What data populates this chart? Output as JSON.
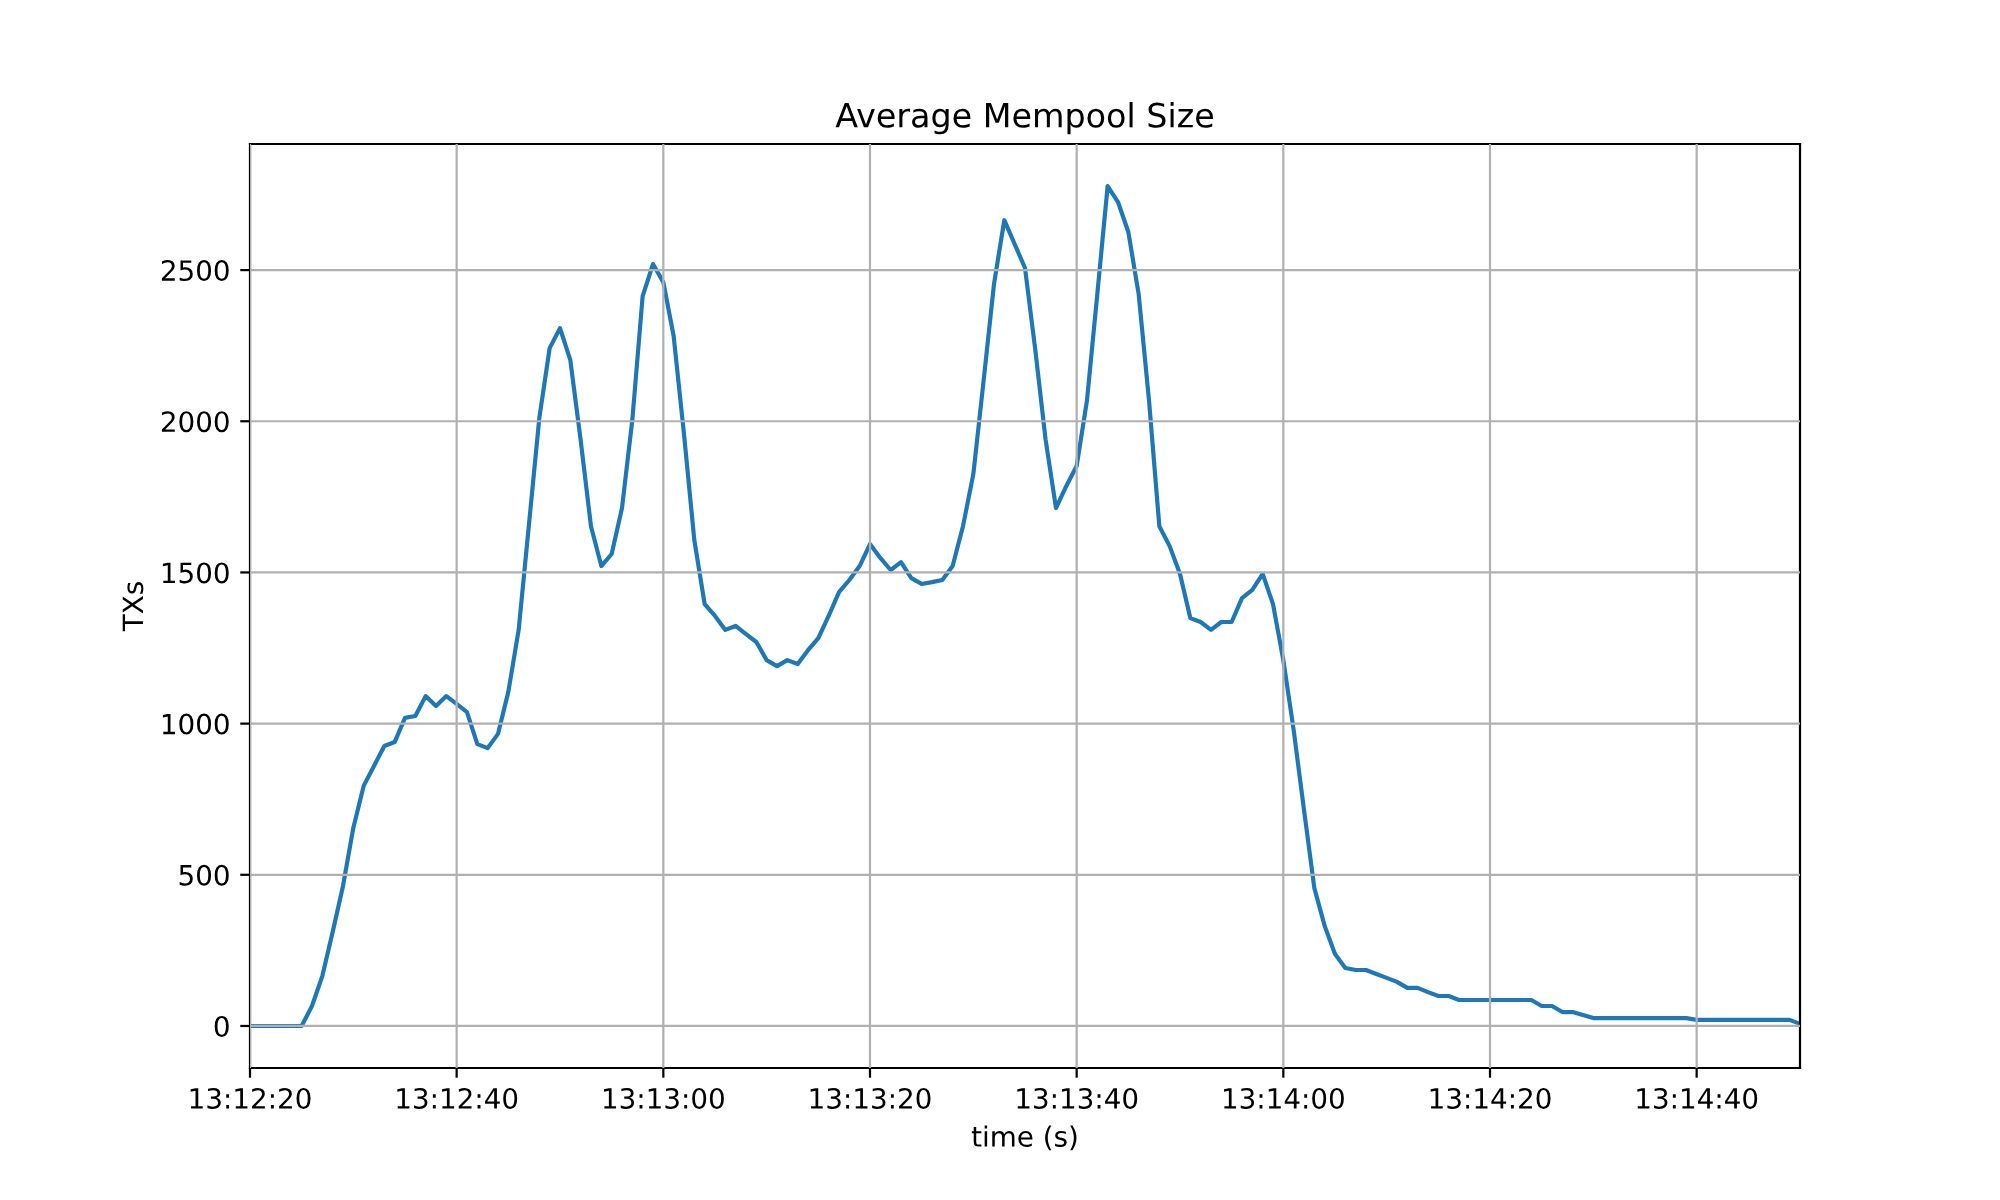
{
  "chart_data": {
    "type": "line",
    "title": "Average Mempool Size",
    "xlabel": "time (s)",
    "ylabel": "TXs",
    "x": [
      13.205556,
      13.206944,
      13.207222,
      13.2075,
      13.207778,
      13.208056,
      13.208333,
      13.208611,
      13.208889,
      13.209167,
      13.209444,
      13.209722,
      13.21,
      13.210278,
      13.210556,
      13.210833,
      13.211111,
      13.211389,
      13.211667,
      13.211944,
      13.212222,
      13.2125,
      13.212778,
      13.213056,
      13.213333,
      13.213611,
      13.213889,
      13.214167,
      13.214444,
      13.214722,
      13.215,
      13.215278,
      13.215556,
      13.215833,
      13.216111,
      13.216389,
      13.216667,
      13.216944,
      13.217222,
      13.2175,
      13.217778,
      13.218056,
      13.218333,
      13.218611,
      13.218889,
      13.219167,
      13.219444,
      13.219722,
      13.22,
      13.220278,
      13.220556,
      13.220833,
      13.221111,
      13.221389,
      13.221667,
      13.221944,
      13.222222,
      13.2225,
      13.222778,
      13.223056,
      13.223333,
      13.223611,
      13.223889,
      13.224167,
      13.224444,
      13.224722,
      13.225,
      13.225278,
      13.225556,
      13.225833,
      13.226111,
      13.226389,
      13.226667,
      13.226944,
      13.227222,
      13.2275,
      13.227778,
      13.228056,
      13.228333,
      13.228611,
      13.228889,
      13.229167,
      13.229444,
      13.229722,
      13.23,
      13.230278,
      13.230556,
      13.230833,
      13.231111,
      13.231389,
      13.231667,
      13.231944,
      13.232222,
      13.2325,
      13.232778,
      13.233056,
      13.233333,
      13.233611,
      13.233889,
      13.234167,
      13.234444,
      13.234722,
      13.235,
      13.235278,
      13.235556,
      13.235833,
      13.236111,
      13.236389,
      13.236667,
      13.236944,
      13.237222,
      13.2375,
      13.237778,
      13.238056,
      13.24,
      13.240278,
      13.240556,
      13.240833,
      13.241111,
      13.241667,
      13.244167,
      13.244444,
      13.246944,
      13.247222
    ],
    "series": [
      {
        "color": "#1f77b4",
        "values": [
          0,
          0,
          66,
          165,
          311,
          463,
          655,
          794,
          860,
          926,
          939,
          1019,
          1025,
          1091,
          1058,
          1091,
          1065,
          1038,
          932,
          919,
          966,
          1105,
          1310,
          1660,
          2011,
          2242,
          2308,
          2202,
          1938,
          1653,
          1521,
          1561,
          1713,
          2004,
          2414,
          2520,
          2460,
          2282,
          1958,
          1607,
          1395,
          1356,
          1310,
          1323,
          1296,
          1270,
          1210,
          1190,
          1210,
          1197,
          1243,
          1283,
          1356,
          1435,
          1475,
          1521,
          1594,
          1548,
          1508,
          1534,
          1481,
          1462,
          1468,
          1475,
          1521,
          1653,
          1825,
          2136,
          2454,
          2665,
          2586,
          2507,
          2235,
          1938,
          1713,
          1786,
          1852,
          2070,
          2421,
          2778,
          2725,
          2626,
          2421,
          2070,
          1653,
          1587,
          1495,
          1349,
          1336,
          1310,
          1336,
          1336,
          1415,
          1442,
          1495,
          1395,
          1210,
          979,
          714,
          456,
          331,
          238,
          192,
          185,
          185,
          172,
          159,
          146,
          126,
          126,
          112,
          99,
          99,
          86,
          86,
          66,
          66,
          46,
          46,
          26,
          26,
          20,
          20,
          7
        ]
      }
    ],
    "xlim": [
      13.205556,
      13.247222
    ],
    "xticks": [
      {
        "value": 13.205556,
        "label": "13:12:20"
      },
      {
        "value": 13.211111,
        "label": "13:12:40"
      },
      {
        "value": 13.216667,
        "label": "13:13:00"
      },
      {
        "value": 13.222222,
        "label": "13:13:20"
      },
      {
        "value": 13.227778,
        "label": "13:13:40"
      },
      {
        "value": 13.233333,
        "label": "13:14:00"
      },
      {
        "value": 13.238889,
        "label": "13:14:20"
      },
      {
        "value": 13.244444,
        "label": "13:14:40"
      }
    ],
    "ylim": [
      -139,
      2917
    ],
    "yticks": [
      0,
      500,
      1000,
      1500,
      2000,
      2500
    ],
    "grid": true
  }
}
